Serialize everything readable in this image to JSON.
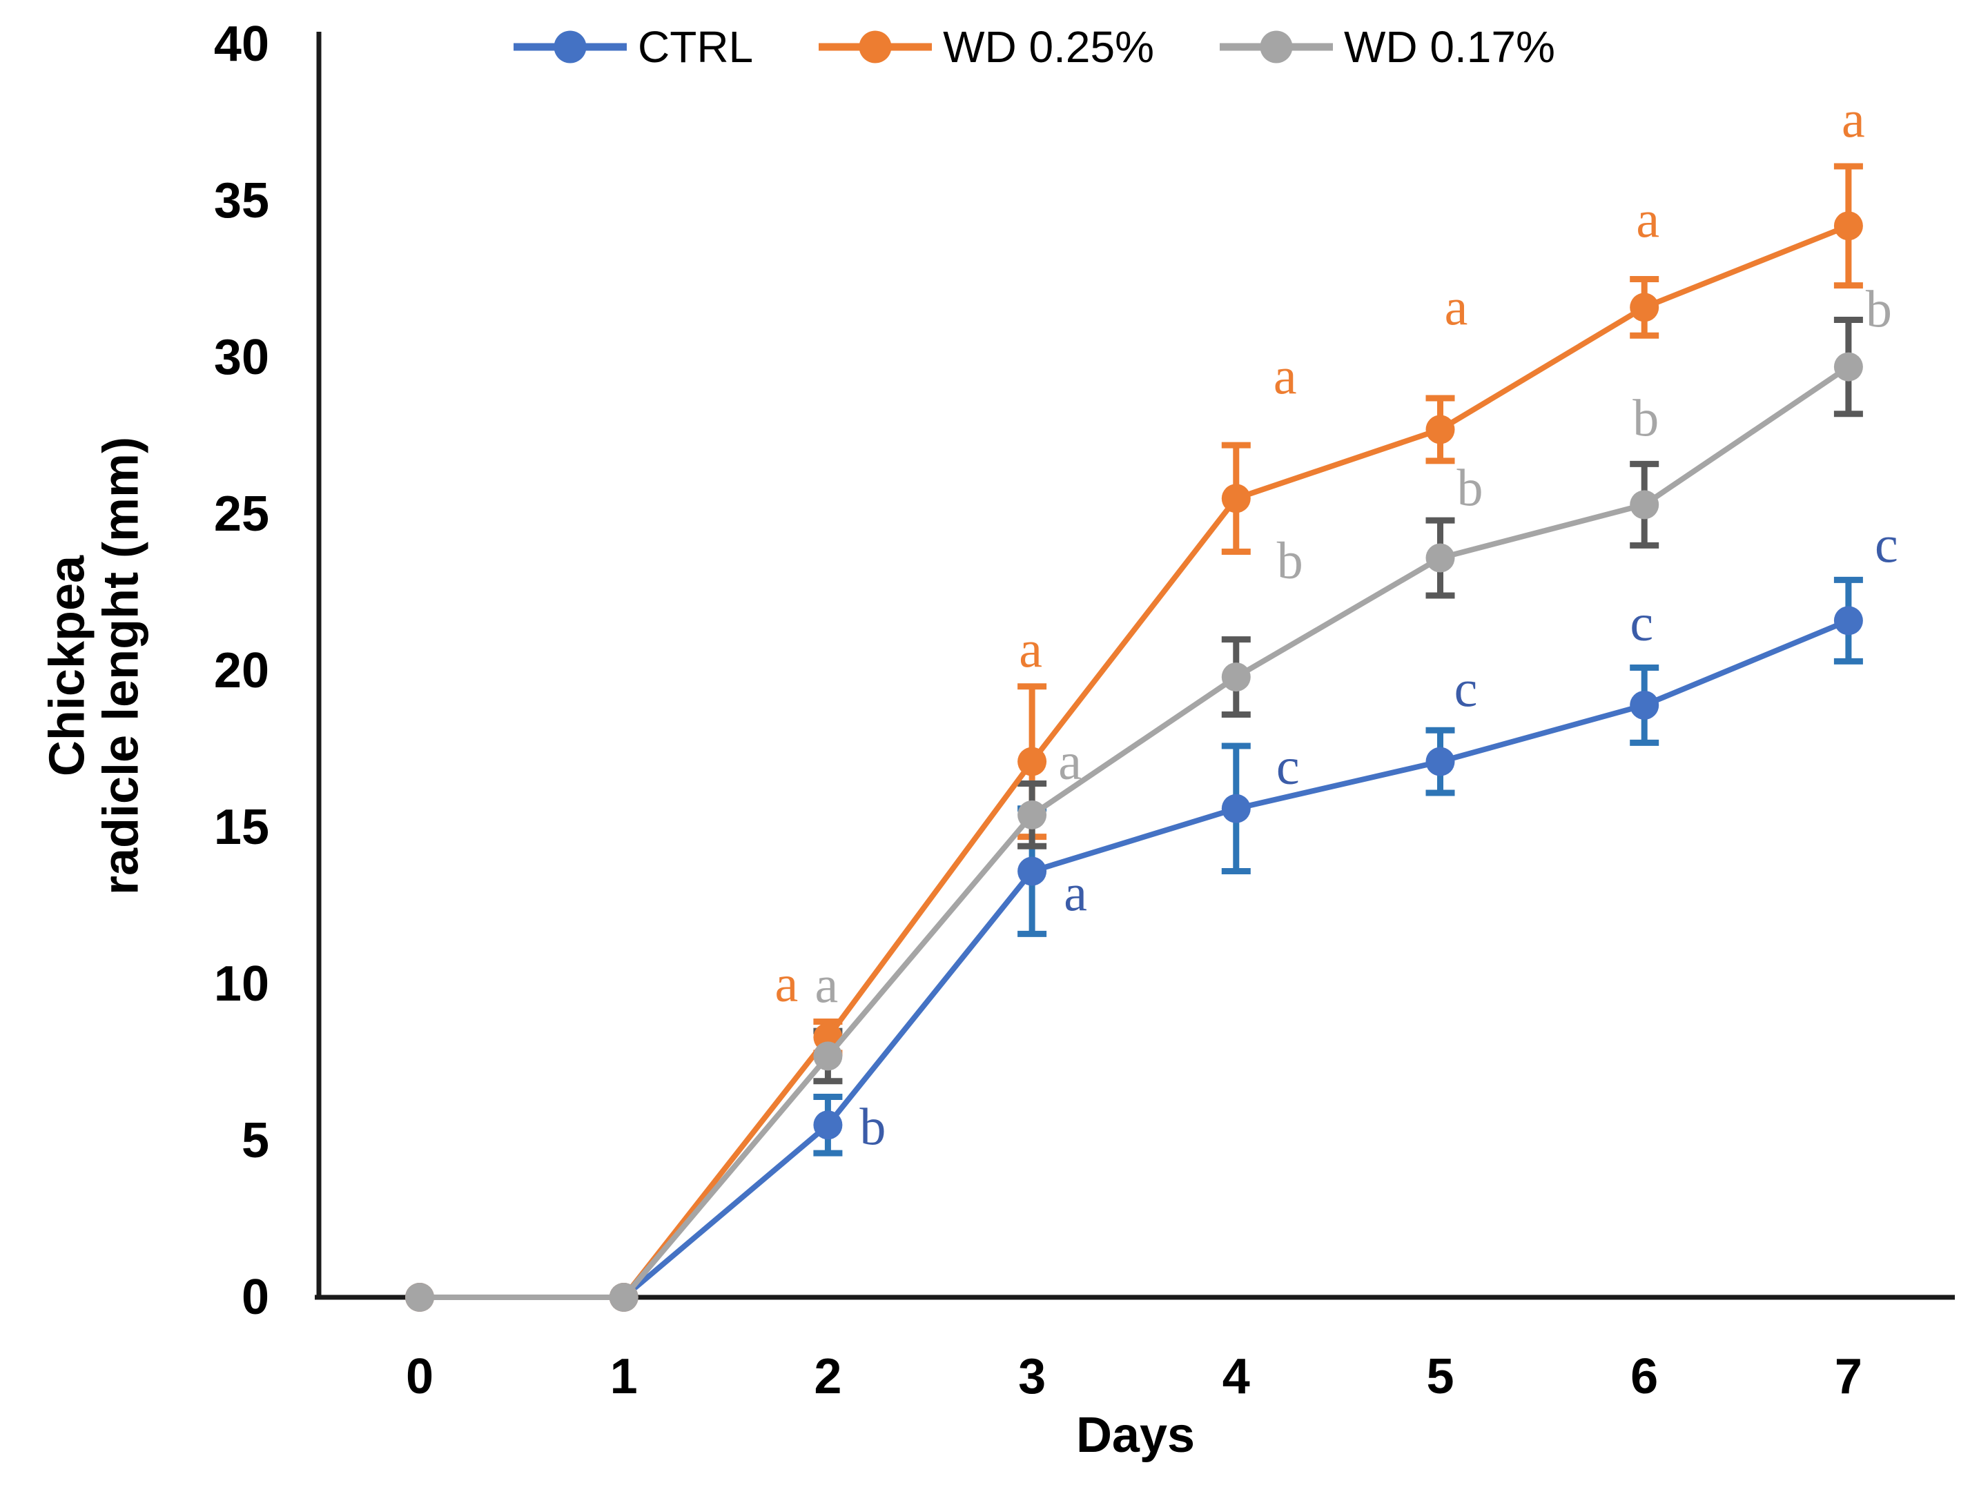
{
  "legend": {
    "items": [
      {
        "label": "CTRL"
      },
      {
        "label": "WD 0.25%"
      },
      {
        "label": "WD 0.17%"
      }
    ]
  },
  "chart_data": {
    "type": "line",
    "title": "",
    "xlabel": "Days",
    "ylabel": "Chickpea radicle lenght (mm)",
    "ylabel_lines": [
      "Chickpea",
      "radicle lenght (mm)"
    ],
    "x": [
      0,
      1,
      2,
      3,
      4,
      5,
      6,
      7
    ],
    "xticks": [
      "0",
      "1",
      "2",
      "3",
      "4",
      "5",
      "6",
      "7"
    ],
    "ylim": [
      0,
      40
    ],
    "yticks": [
      "0",
      "5",
      "10",
      "15",
      "20",
      "25",
      "30",
      "35",
      "40"
    ],
    "grid": false,
    "legend_position": "top-center",
    "axis_color": "#1a1a1a",
    "series": [
      {
        "name": "CTRL",
        "color": "#4472C4",
        "error_color": "#2E75B6",
        "letter_color": "#3B5CA8",
        "values": [
          0,
          0,
          5.5,
          13.6,
          15.6,
          17.1,
          18.9,
          21.6
        ],
        "errors": [
          0,
          0,
          0.9,
          2.0,
          2.0,
          1.0,
          1.2,
          1.3
        ],
        "letters": [
          "",
          "",
          "b",
          "a",
          "c",
          "c",
          "c",
          "c"
        ]
      },
      {
        "name": "WD 0.25%",
        "color": "#ED7D31",
        "error_color": "#ED7D31",
        "letter_color": "#ED7D31",
        "values": [
          0,
          0,
          8.3,
          17.1,
          25.5,
          27.7,
          31.6,
          34.2
        ],
        "errors": [
          0,
          0,
          0.5,
          2.4,
          1.7,
          1.0,
          0.9,
          1.9
        ],
        "letters": [
          "",
          "",
          "a",
          "a",
          "a",
          "a",
          "a",
          "a"
        ]
      },
      {
        "name": "WD 0.17%",
        "color": "#A5A5A5",
        "error_color": "#595959",
        "letter_color": "#A6A6A6",
        "values": [
          0,
          0,
          7.7,
          15.4,
          19.8,
          23.6,
          25.3,
          29.7
        ],
        "errors": [
          0,
          0,
          0.8,
          1.0,
          1.2,
          1.2,
          1.3,
          1.5
        ],
        "letters": [
          "",
          "",
          "a",
          "a",
          "b",
          "b",
          "b",
          "b"
        ]
      }
    ],
    "letter_offsets": [
      [
        null,
        null,
        [
          65,
          3
        ],
        [
          63,
          32
        ],
        [
          75,
          -61
        ],
        [
          37,
          -105
        ],
        [
          -4,
          -119
        ],
        [
          55,
          -110
        ]
      ],
      [
        null,
        null,
        [
          -60,
          -77
        ],
        [
          -2,
          -162
        ],
        [
          71,
          -177
        ],
        [
          23,
          -177
        ],
        [
          5,
          -127
        ],
        [
          7,
          -154
        ]
      ],
      [
        null,
        null,
        [
          -2,
          -103
        ],
        [
          55,
          -77
        ],
        [
          78,
          -168
        ],
        [
          43,
          -101
        ],
        [
          2,
          -125
        ],
        [
          44,
          -83
        ]
      ]
    ]
  }
}
